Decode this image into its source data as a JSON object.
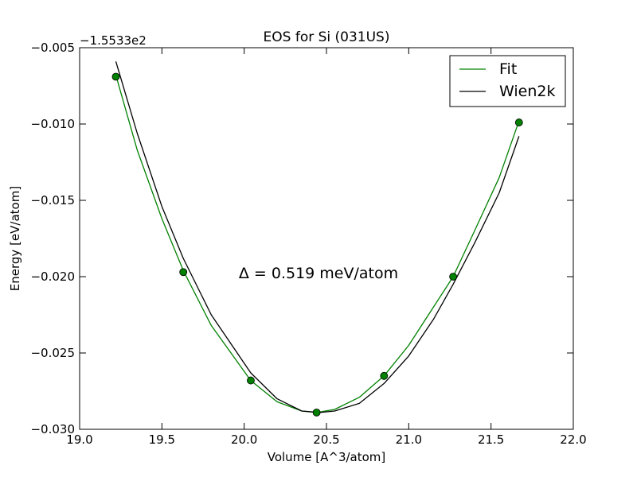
{
  "chart_data": {
    "type": "line",
    "title": "EOS for Si (031US)",
    "xlabel": "Volume [A^3/atom]",
    "ylabel": "Energy [eV/atom]",
    "y_offset_label": "−1.5533e2",
    "annotation": "Δ = 0.519 meV/atom",
    "xlim": [
      19.0,
      22.0
    ],
    "ylim": [
      -0.03,
      -0.005
    ],
    "x_ticks": [
      19.0,
      19.5,
      20.0,
      20.5,
      21.0,
      21.5,
      22.0
    ],
    "x_tick_labels": [
      "19.0",
      "19.5",
      "20.0",
      "20.5",
      "21.0",
      "21.5",
      "22.0"
    ],
    "y_ticks": [
      -0.03,
      -0.025,
      -0.02,
      -0.015,
      -0.01,
      -0.005
    ],
    "y_tick_labels": [
      "−0.030",
      "−0.025",
      "−0.020",
      "−0.015",
      "−0.010",
      "−0.005"
    ],
    "grid": false,
    "legend_position": "top-right",
    "series": [
      {
        "name": "Fit",
        "kind": "line",
        "color": "#008000",
        "x": [
          19.22,
          19.35,
          19.5,
          19.63,
          19.8,
          20.04,
          20.2,
          20.35,
          20.44,
          20.55,
          20.7,
          20.85,
          21.0,
          21.15,
          21.27,
          21.4,
          21.55,
          21.67
        ],
        "y": [
          -0.0068,
          -0.0117,
          -0.0162,
          -0.0196,
          -0.0232,
          -0.0268,
          -0.0282,
          -0.0288,
          -0.0289,
          -0.0287,
          -0.0279,
          -0.0265,
          -0.0245,
          -0.022,
          -0.02,
          -0.017,
          -0.0135,
          -0.0098
        ]
      },
      {
        "name": "Wien2k",
        "kind": "line",
        "color": "#000000",
        "x": [
          19.22,
          19.35,
          19.5,
          19.63,
          19.8,
          20.04,
          20.2,
          20.35,
          20.46,
          20.55,
          20.7,
          20.85,
          21.0,
          21.15,
          21.27,
          21.4,
          21.55,
          21.67
        ],
        "y": [
          -0.0059,
          -0.0106,
          -0.0154,
          -0.0188,
          -0.0225,
          -0.0263,
          -0.028,
          -0.0288,
          -0.0289,
          -0.0288,
          -0.0283,
          -0.027,
          -0.0252,
          -0.0228,
          -0.0205,
          -0.0178,
          -0.0145,
          -0.0108
        ]
      },
      {
        "name": "data points",
        "kind": "markers",
        "color": "#008000",
        "x": [
          19.22,
          19.63,
          20.04,
          20.44,
          20.85,
          21.27,
          21.67
        ],
        "y": [
          -0.0069,
          -0.0197,
          -0.0268,
          -0.0289,
          -0.0265,
          -0.02,
          -0.0099
        ]
      }
    ]
  }
}
